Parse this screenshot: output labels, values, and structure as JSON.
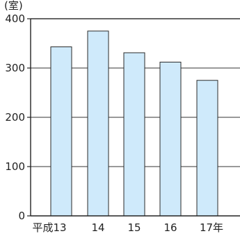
{
  "chart_data": {
    "type": "bar",
    "unit_label": "(室)",
    "categories": [
      "平成13",
      "14",
      "15",
      "16",
      "17年"
    ],
    "values": [
      343,
      375,
      331,
      312,
      275
    ],
    "yticks": [
      0,
      100,
      200,
      300,
      400
    ],
    "ylim": [
      0,
      400
    ],
    "grid": true,
    "colors": {
      "bar_fill": "#cfeafb",
      "bar_stroke": "#2a2a2a",
      "axis": "#222222",
      "grid": "#333333"
    }
  }
}
